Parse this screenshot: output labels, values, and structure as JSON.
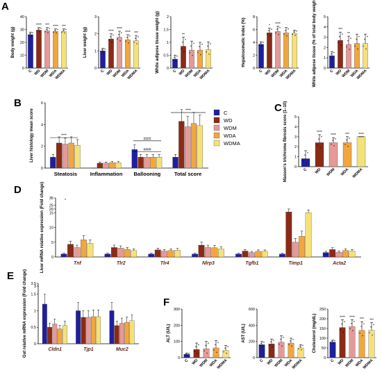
{
  "colors": {
    "C": "#1f1f9e",
    "WD": "#8b2a16",
    "WDM": "#e59a98",
    "WDA": "#f2a63e",
    "WDMA": "#f5e17a"
  },
  "groups": [
    "C",
    "WD",
    "WDM",
    "WDA",
    "WDMA"
  ],
  "panels": {
    "A": "A",
    "B": "B",
    "C": "C",
    "D": "D",
    "E": "E",
    "F": "F"
  },
  "chart_data": [
    {
      "panel": "A",
      "type": "bar",
      "categories": [
        "C",
        "WD",
        "WDM",
        "WDA",
        "WDMA"
      ],
      "values": [
        26,
        29.5,
        29,
        28.5,
        28.5
      ],
      "errors": [
        2,
        2,
        2.5,
        2,
        2
      ],
      "ylabel": "Body weight (g)",
      "ylim": [
        0,
        40
      ],
      "yticks": [
        0,
        10,
        20,
        30,
        40
      ],
      "annotations": [
        "",
        "****",
        "***",
        "****",
        "***"
      ]
    },
    {
      "panel": "A",
      "type": "bar",
      "categories": [
        "C",
        "WD",
        "WDM",
        "WDA",
        "WDMA"
      ],
      "values": [
        1,
        1.7,
        1.8,
        1.65,
        1.6
      ],
      "errors": [
        0.15,
        0.3,
        0.35,
        0.3,
        0.3
      ],
      "ylabel": "Liver weight (g)",
      "ylim": [
        0,
        3
      ],
      "yticks": [
        0,
        1,
        2,
        3
      ],
      "annotations": [
        "",
        "****",
        "****",
        "****",
        "***"
      ]
    },
    {
      "panel": "A",
      "type": "bar",
      "categories": [
        "C",
        "WD",
        "WDM",
        "WDA",
        "WDMA"
      ],
      "values": [
        0.35,
        0.85,
        0.7,
        0.7,
        0.72
      ],
      "errors": [
        0.15,
        0.35,
        0.35,
        0.3,
        0.3
      ],
      "ylabel": "White adipose tissue weight (g)",
      "ylim": [
        0,
        2
      ],
      "yticks": [
        0,
        0.5,
        1,
        1.5,
        2
      ],
      "annotations": [
        "",
        "**",
        "",
        "",
        ""
      ]
    },
    {
      "panel": "A",
      "type": "bar",
      "categories": [
        "C",
        "WD",
        "WDM",
        "WDA",
        "WDMA"
      ],
      "values": [
        3.7,
        5.5,
        5.7,
        5.5,
        5.4
      ],
      "errors": [
        0.4,
        0.7,
        0.8,
        0.8,
        0.5
      ],
      "ylabel": "Hepatosomatic index (%)",
      "ylim": [
        0,
        8
      ],
      "yticks": [
        0,
        2,
        4,
        6,
        8
      ],
      "annotations": [
        "",
        "*",
        "****",
        "",
        ""
      ]
    },
    {
      "panel": "A",
      "type": "bar",
      "categories": [
        "C",
        "WD",
        "WDM",
        "WDA",
        "WDMA"
      ],
      "values": [
        1.2,
        2.7,
        2.3,
        2.4,
        2.4
      ],
      "errors": [
        0.4,
        0.8,
        0.8,
        0.9,
        0.9
      ],
      "ylabel": "White adipose tissue (% of total body weight)",
      "ylim": [
        0,
        5
      ],
      "yticks": [
        0,
        1,
        2,
        3,
        4,
        5
      ],
      "annotations": [
        "",
        "***",
        "**",
        "",
        ""
      ]
    },
    {
      "panel": "B",
      "type": "bar",
      "categories": [
        "Steatosis",
        "Inflammation",
        "Ballooning",
        "Total score"
      ],
      "series": [
        {
          "name": "C",
          "values": [
            1,
            0,
            1.7,
            1
          ]
        },
        {
          "name": "WD",
          "values": [
            2.3,
            0.45,
            1,
            4.3
          ]
        },
        {
          "name": "WDM",
          "values": [
            2.2,
            0.45,
            1,
            3.8
          ]
        },
        {
          "name": "WDA",
          "values": [
            2.3,
            0.5,
            1,
            4.1
          ]
        },
        {
          "name": "WDMA",
          "values": [
            2.1,
            0.5,
            1,
            3.9
          ]
        }
      ],
      "ylabel": "Liver histology mean score",
      "ylim": [
        0,
        6
      ],
      "yticks": [
        0,
        2,
        4,
        6
      ],
      "annotations": [
        "****",
        "****",
        "####",
        "****"
      ]
    },
    {
      "panel": "C",
      "type": "bar",
      "categories": [
        "C",
        "WD",
        "WDM",
        "WDA",
        "WDMA"
      ],
      "values": [
        0.8,
        2.4,
        2.4,
        2.4,
        3
      ],
      "errors": [
        0.8,
        0.8,
        0.5,
        0.6,
        0
      ],
      "ylabel": "Masson's trichrome fibrosis score (1–10)",
      "ylim": [
        0,
        5
      ],
      "yticks": [
        0,
        1,
        2,
        3,
        4,
        5
      ],
      "annotations": [
        "",
        "****",
        "****",
        "***",
        "****"
      ]
    },
    {
      "panel": "D",
      "type": "bar",
      "categories": [
        "Tnf",
        "Tlr2",
        "Tlr4",
        "Nlrp3",
        "Tgfb1",
        "Timp1",
        "Acta2"
      ],
      "series": [
        {
          "name": "C",
          "values": [
            1,
            1,
            1,
            1,
            1,
            1,
            1.5
          ]
        },
        {
          "name": "WD",
          "values": [
            4.3,
            3.2,
            2.4,
            4,
            2,
            16,
            2.5
          ]
        },
        {
          "name": "WDM",
          "values": [
            3.2,
            3,
            2,
            3.2,
            1.5,
            5,
            1.6
          ]
        },
        {
          "name": "WDA",
          "values": [
            5.8,
            2.6,
            2.2,
            3.1,
            1.9,
            7,
            2.2
          ]
        },
        {
          "name": "WDMA",
          "values": [
            4.6,
            2.2,
            2.3,
            2.7,
            1.9,
            15,
            2
          ]
        }
      ],
      "ylabel": "Liver mRNA relative expression (Fold change)",
      "ylim": [
        0,
        35
      ],
      "yticks": [
        0,
        5,
        10,
        15,
        20,
        25,
        35
      ]
    },
    {
      "panel": "E",
      "type": "bar",
      "categories": [
        "Cldn1",
        "Tjp1",
        "Muc2"
      ],
      "series": [
        {
          "name": "C",
          "values": [
            1.2,
            1,
            1
          ]
        },
        {
          "name": "WD",
          "values": [
            0.5,
            0.8,
            0.55
          ]
        },
        {
          "name": "WDM",
          "values": [
            0.6,
            0.8,
            0.62
          ]
        },
        {
          "name": "WDA",
          "values": [
            0.45,
            0.82,
            0.65
          ]
        },
        {
          "name": "WDMA",
          "values": [
            0.55,
            0.82,
            0.7
          ]
        }
      ],
      "ylabel": "Gut relative mRNA expression (Fold change)",
      "ylim": [
        0,
        3.5
      ],
      "yticks": [
        0,
        0.5,
        1,
        1.5,
        3,
        3.5
      ]
    },
    {
      "panel": "F",
      "type": "bar",
      "categories": [
        "C",
        "WD",
        "WDM",
        "WDA",
        "WDMA"
      ],
      "values": [
        20,
        50,
        55,
        60,
        45
      ],
      "errors": [
        8,
        40,
        45,
        45,
        30
      ],
      "ylabel": "ALT (U/L)",
      "ylim": [
        0,
        300
      ],
      "yticks": [
        0,
        100,
        200,
        300
      ]
    },
    {
      "panel": "F",
      "type": "bar",
      "categories": [
        "C",
        "WD",
        "WDM",
        "WDA",
        "WDMA"
      ],
      "values": [
        160,
        170,
        190,
        180,
        120
      ],
      "errors": [
        40,
        60,
        80,
        60,
        40
      ],
      "ylabel": "AST (U/L)",
      "ylim": [
        0,
        600
      ],
      "yticks": [
        0,
        200,
        400,
        600
      ]
    },
    {
      "panel": "F",
      "type": "bar",
      "categories": [
        "C",
        "WD",
        "WDM",
        "WDA",
        "WDMA"
      ],
      "values": [
        80,
        155,
        160,
        140,
        140
      ],
      "errors": [
        10,
        40,
        35,
        45,
        40
      ],
      "ylabel": "Cholesterol (mg/dL)",
      "ylim": [
        0,
        250
      ],
      "yticks": [
        0,
        50,
        100,
        150,
        200,
        250
      ],
      "annotations": [
        "",
        "****",
        "****",
        "***",
        "***"
      ]
    }
  ]
}
